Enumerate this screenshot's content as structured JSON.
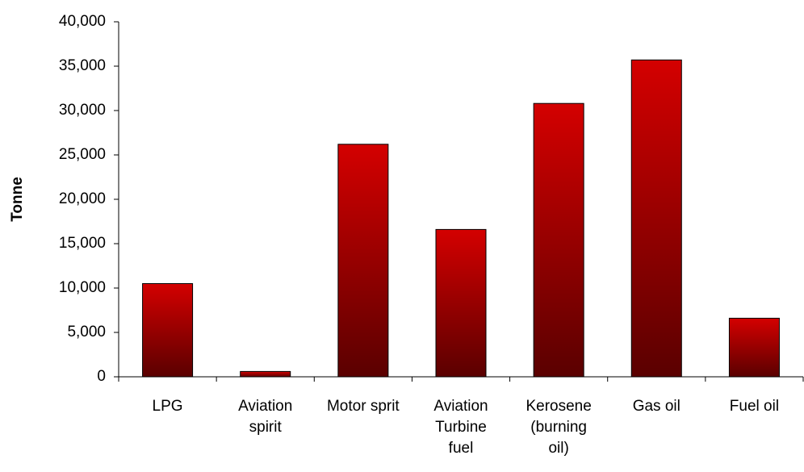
{
  "chart_data": {
    "type": "bar",
    "y_label": "Tonne",
    "categories": [
      "LPG",
      "Aviation spirit",
      "Motor sprit",
      "Aviation Turbine fuel",
      "Kerosene (burning oil)",
      "Gas oil",
      "Fuel oil"
    ],
    "values": [
      10500,
      600,
      26200,
      16600,
      30800,
      35700,
      6600
    ],
    "color": "#d40000",
    "ylim": [
      0,
      40000
    ],
    "yticks": [
      0,
      {
        "value": 5000,
        "label": "5,000"
      },
      {
        "value": 10000,
        "label": "10,000"
      },
      {
        "value": 15000,
        "label": "15,000"
      },
      {
        "value": 20000,
        "label": "20,000"
      },
      {
        "value": 25000,
        "label": "25,000"
      },
      {
        "value": 30000,
        "label": "30,000"
      },
      {
        "value": 35000,
        "label": "35,000"
      },
      {
        "value": 40000,
        "label": "40,000"
      }
    ],
    "grid": false
  }
}
